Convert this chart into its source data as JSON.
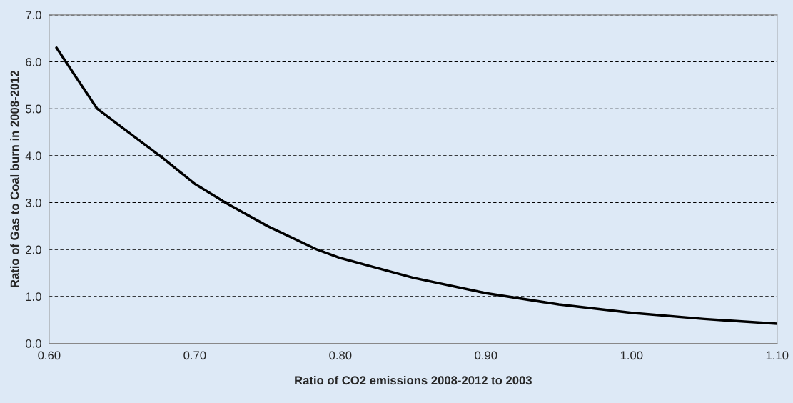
{
  "chart_data": {
    "type": "line",
    "xlabel": "Ratio of CO2 emissions 2008-2012 to 2003",
    "ylabel": "Ratio of Gas to Coal burn in 2008-2012",
    "x": [
      0.605,
      0.62,
      0.633,
      0.65,
      0.678,
      0.7,
      0.721,
      0.75,
      0.784,
      0.8,
      0.85,
      0.9,
      0.95,
      1.0,
      1.05,
      1.1
    ],
    "series": [
      {
        "color": "#000000",
        "values": [
          6.3,
          5.6,
          5.0,
          4.6,
          3.95,
          3.4,
          3.0,
          2.5,
          2.0,
          1.82,
          1.4,
          1.07,
          0.83,
          0.65,
          0.52,
          0.42
        ]
      }
    ],
    "xlim": [
      0.6,
      1.1
    ],
    "xticks": [
      {
        "value": 0.6,
        "label": "0.60"
      },
      {
        "value": 0.7,
        "label": "0.70"
      },
      {
        "value": 0.8,
        "label": "0.80"
      },
      {
        "value": 0.9,
        "label": "0.90"
      },
      {
        "value": 1.0,
        "label": "1.00"
      },
      {
        "value": 1.1,
        "label": "1.10"
      }
    ],
    "ylim": [
      0,
      7
    ],
    "yticks": [
      {
        "value": 0,
        "label": "0.0"
      },
      {
        "value": 1,
        "label": "1.0"
      },
      {
        "value": 2,
        "label": "2.0"
      },
      {
        "value": 3,
        "label": "3.0"
      },
      {
        "value": 4,
        "label": "4.0"
      },
      {
        "value": 5,
        "label": "5.0"
      },
      {
        "value": 6,
        "label": "6.0"
      },
      {
        "value": 7,
        "label": "7.0"
      }
    ],
    "grid": "y",
    "line_style": "solid",
    "marker": "none"
  }
}
